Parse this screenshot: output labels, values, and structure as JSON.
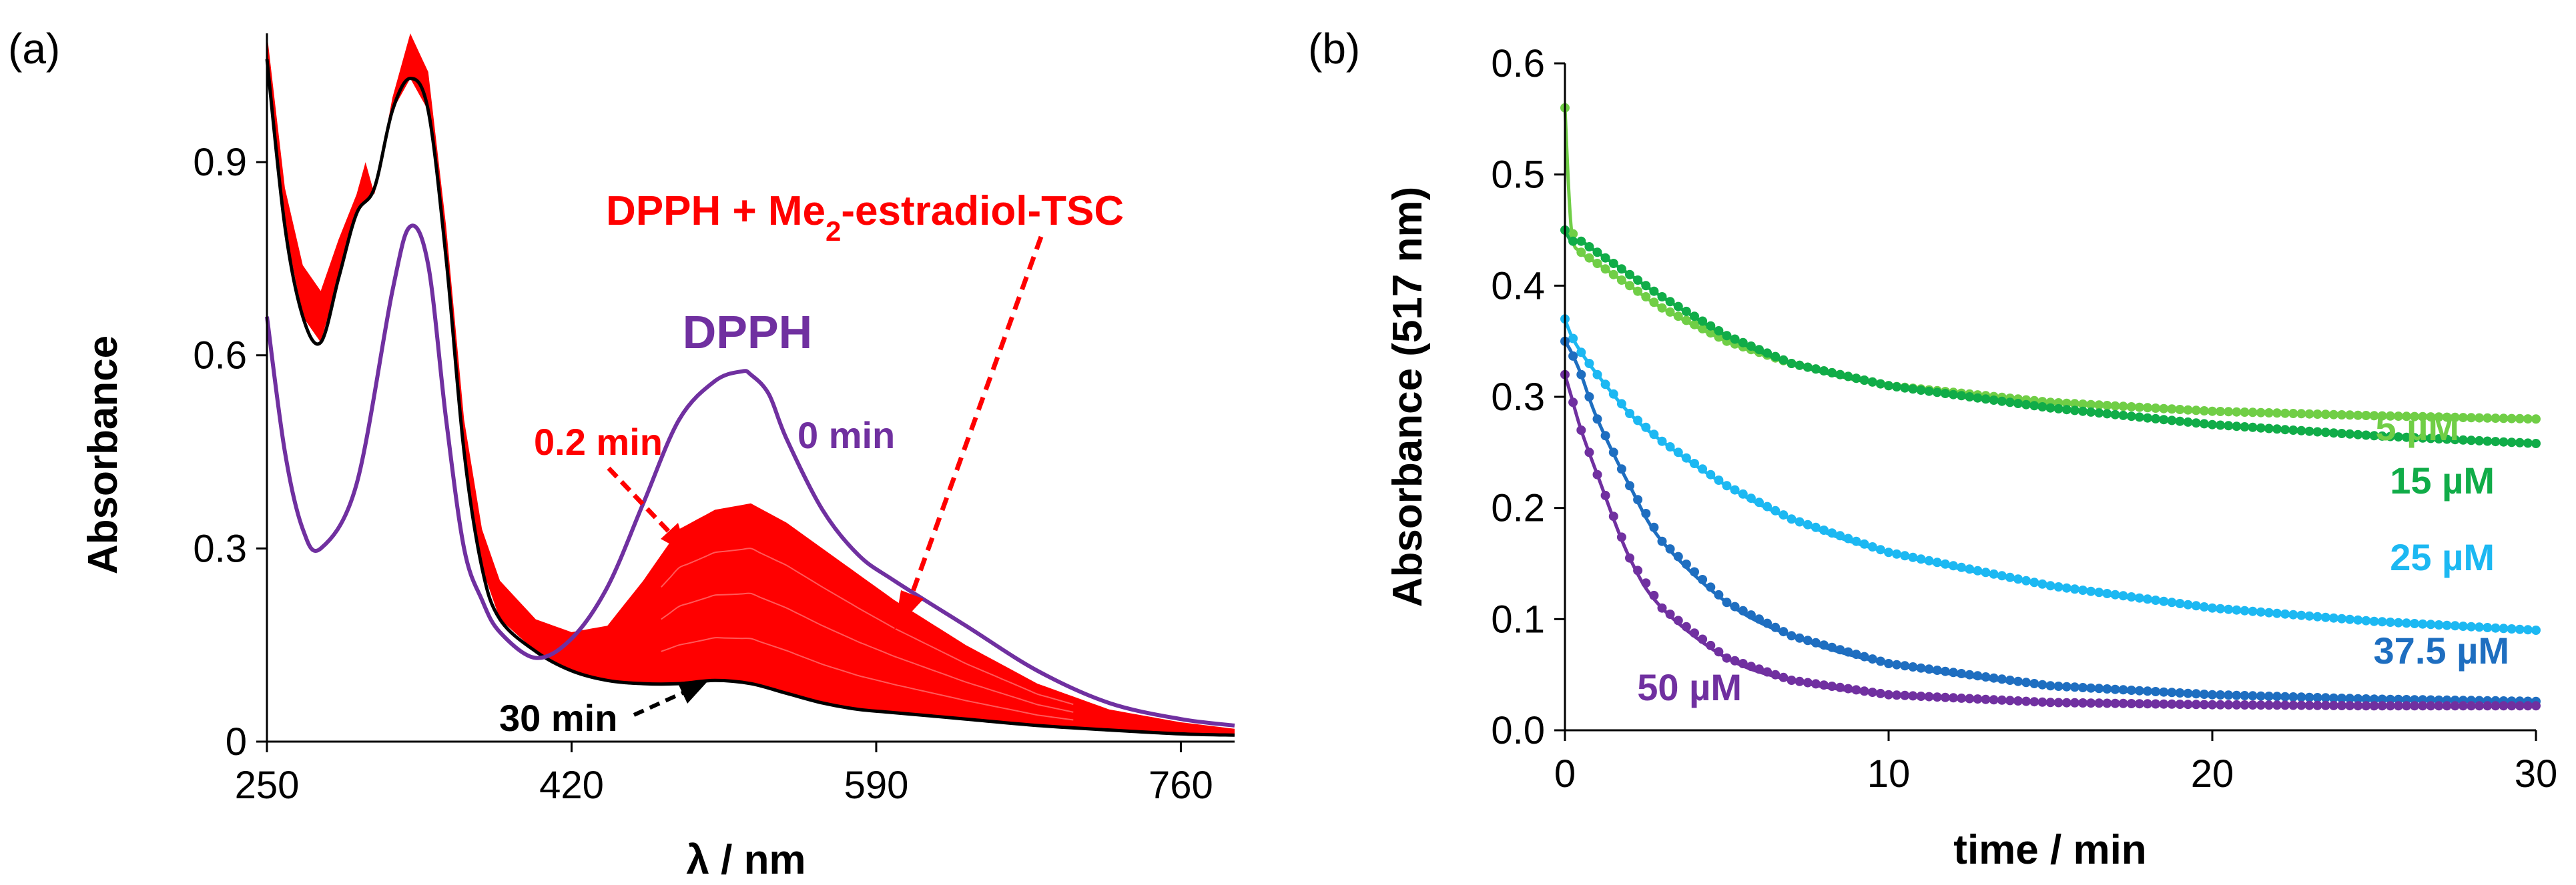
{
  "chart_data": [
    {
      "panel_label": "(a)",
      "type": "line",
      "xlabel": "λ / nm",
      "ylabel": "Absorbance",
      "xlim": [
        250,
        790
      ],
      "ylim": [
        0,
        1.1
      ],
      "x_ticks": [
        "250",
        "420",
        "590",
        "760"
      ],
      "x_tick_values": [
        250,
        420,
        590,
        760
      ],
      "y_ticks": [
        "0",
        "0.3",
        "0.6",
        "0.9"
      ],
      "y_tick_values": [
        0,
        0.3,
        0.6,
        0.9
      ],
      "colors": {
        "dpph": "#7030a0",
        "mixture": "#ff0000",
        "final": "#000000"
      },
      "series": [
        {
          "name": "DPPH (0 min)",
          "x": [
            250,
            260,
            270,
            280,
            300,
            320,
            330,
            340,
            350,
            360,
            370,
            380,
            400,
            420,
            440,
            460,
            480,
            500,
            515,
            520,
            530,
            540,
            560,
            580,
            600,
            640,
            680,
            720,
            760,
            790
          ],
          "y": [
            0.66,
            0.45,
            0.33,
            0.3,
            0.4,
            0.7,
            0.8,
            0.74,
            0.5,
            0.3,
            0.22,
            0.17,
            0.13,
            0.16,
            0.24,
            0.37,
            0.5,
            0.56,
            0.575,
            0.57,
            0.54,
            0.47,
            0.36,
            0.29,
            0.25,
            0.18,
            0.11,
            0.06,
            0.035,
            0.025
          ]
        },
        {
          "name": "DPPH + Me2-estradiol-TSC (0.2 min)",
          "x": [
            250,
            260,
            270,
            280,
            290,
            300,
            305,
            310,
            320,
            330,
            340,
            350,
            360,
            370,
            380,
            400,
            420,
            440,
            460,
            480,
            500,
            520,
            540,
            560,
            580,
            600,
            640,
            680,
            720,
            760,
            790
          ],
          "y": [
            1.1,
            0.86,
            0.74,
            0.7,
            0.78,
            0.85,
            0.9,
            0.85,
            1.0,
            1.1,
            1.04,
            0.8,
            0.5,
            0.33,
            0.25,
            0.19,
            0.17,
            0.18,
            0.25,
            0.33,
            0.36,
            0.37,
            0.34,
            0.3,
            0.26,
            0.22,
            0.15,
            0.09,
            0.05,
            0.03,
            0.02
          ]
        },
        {
          "name": "30 min",
          "x": [
            250,
            260,
            270,
            280,
            290,
            300,
            310,
            320,
            330,
            340,
            350,
            360,
            370,
            380,
            400,
            420,
            440,
            460,
            480,
            500,
            520,
            540,
            560,
            580,
            600,
            640,
            680,
            720,
            760,
            790
          ],
          "y": [
            1.06,
            0.8,
            0.66,
            0.62,
            0.72,
            0.82,
            0.86,
            0.98,
            1.03,
            0.98,
            0.75,
            0.45,
            0.27,
            0.19,
            0.14,
            0.11,
            0.095,
            0.09,
            0.09,
            0.095,
            0.09,
            0.075,
            0.06,
            0.05,
            0.045,
            0.035,
            0.025,
            0.018,
            0.012,
            0.01
          ]
        }
      ],
      "annotations": {
        "dpph": "DPPH",
        "mixture_prefix": "DPPH + Me",
        "mixture_sub": "2",
        "mixture_suffix": "-estradiol-TSC",
        "t0": "0 min",
        "t02": "0.2 min",
        "t30": "30 min"
      }
    },
    {
      "panel_label": "(b)",
      "type": "scatter",
      "xlabel": "time / min",
      "ylabel": "Absorbance (517 nm)",
      "xlim": [
        0,
        30
      ],
      "ylim": [
        0,
        0.6
      ],
      "x_ticks": [
        "0",
        "10",
        "20",
        "30"
      ],
      "x_tick_values": [
        0,
        10,
        20,
        30
      ],
      "y_ticks": [
        "0.0",
        "0.1",
        "0.2",
        "0.3",
        "0.4",
        "0.5",
        "0.6"
      ],
      "y_tick_values": [
        0,
        0.1,
        0.2,
        0.3,
        0.4,
        0.5,
        0.6
      ],
      "series": [
        {
          "name": "5 µM",
          "label": "5 µM",
          "color": "#70ce46",
          "x": [
            0,
            0.2,
            0.5,
            1,
            2,
            3,
            5,
            7,
            10,
            15,
            20,
            25,
            30
          ],
          "y": [
            0.56,
            0.45,
            0.43,
            0.42,
            0.4,
            0.38,
            0.35,
            0.33,
            0.31,
            0.295,
            0.287,
            0.283,
            0.28
          ]
        },
        {
          "name": "15 µM",
          "label": "15 µM",
          "color": "#10ac48",
          "x": [
            0,
            0.2,
            0.5,
            1,
            2,
            3,
            5,
            7,
            10,
            15,
            20,
            25,
            30
          ],
          "y": [
            0.45,
            0.44,
            0.44,
            0.43,
            0.41,
            0.39,
            0.355,
            0.33,
            0.31,
            0.29,
            0.275,
            0.265,
            0.258
          ]
        },
        {
          "name": "25 µM",
          "label": "25 µM",
          "color": "#1cb8f2",
          "x": [
            0,
            0.2,
            0.5,
            1,
            2,
            3,
            5,
            7,
            10,
            15,
            20,
            25,
            30
          ],
          "y": [
            0.37,
            0.355,
            0.34,
            0.32,
            0.285,
            0.26,
            0.22,
            0.19,
            0.16,
            0.13,
            0.11,
            0.098,
            0.09
          ]
        },
        {
          "name": "37.5 µM",
          "label": "37.5 µM",
          "color": "#1e6ec0",
          "x": [
            0,
            0.2,
            0.5,
            1,
            2,
            3,
            5,
            7,
            10,
            15,
            20,
            25,
            30
          ],
          "y": [
            0.35,
            0.34,
            0.32,
            0.28,
            0.22,
            0.17,
            0.115,
            0.085,
            0.06,
            0.04,
            0.032,
            0.028,
            0.026
          ]
        },
        {
          "name": "50 µM",
          "label": "50 µM",
          "color": "#7030a0",
          "x": [
            0,
            0.2,
            0.5,
            1,
            2,
            3,
            5,
            7,
            10,
            15,
            20,
            25,
            30
          ],
          "y": [
            0.32,
            0.3,
            0.27,
            0.23,
            0.155,
            0.11,
            0.065,
            0.045,
            0.032,
            0.025,
            0.023,
            0.022,
            0.022
          ]
        }
      ]
    }
  ]
}
